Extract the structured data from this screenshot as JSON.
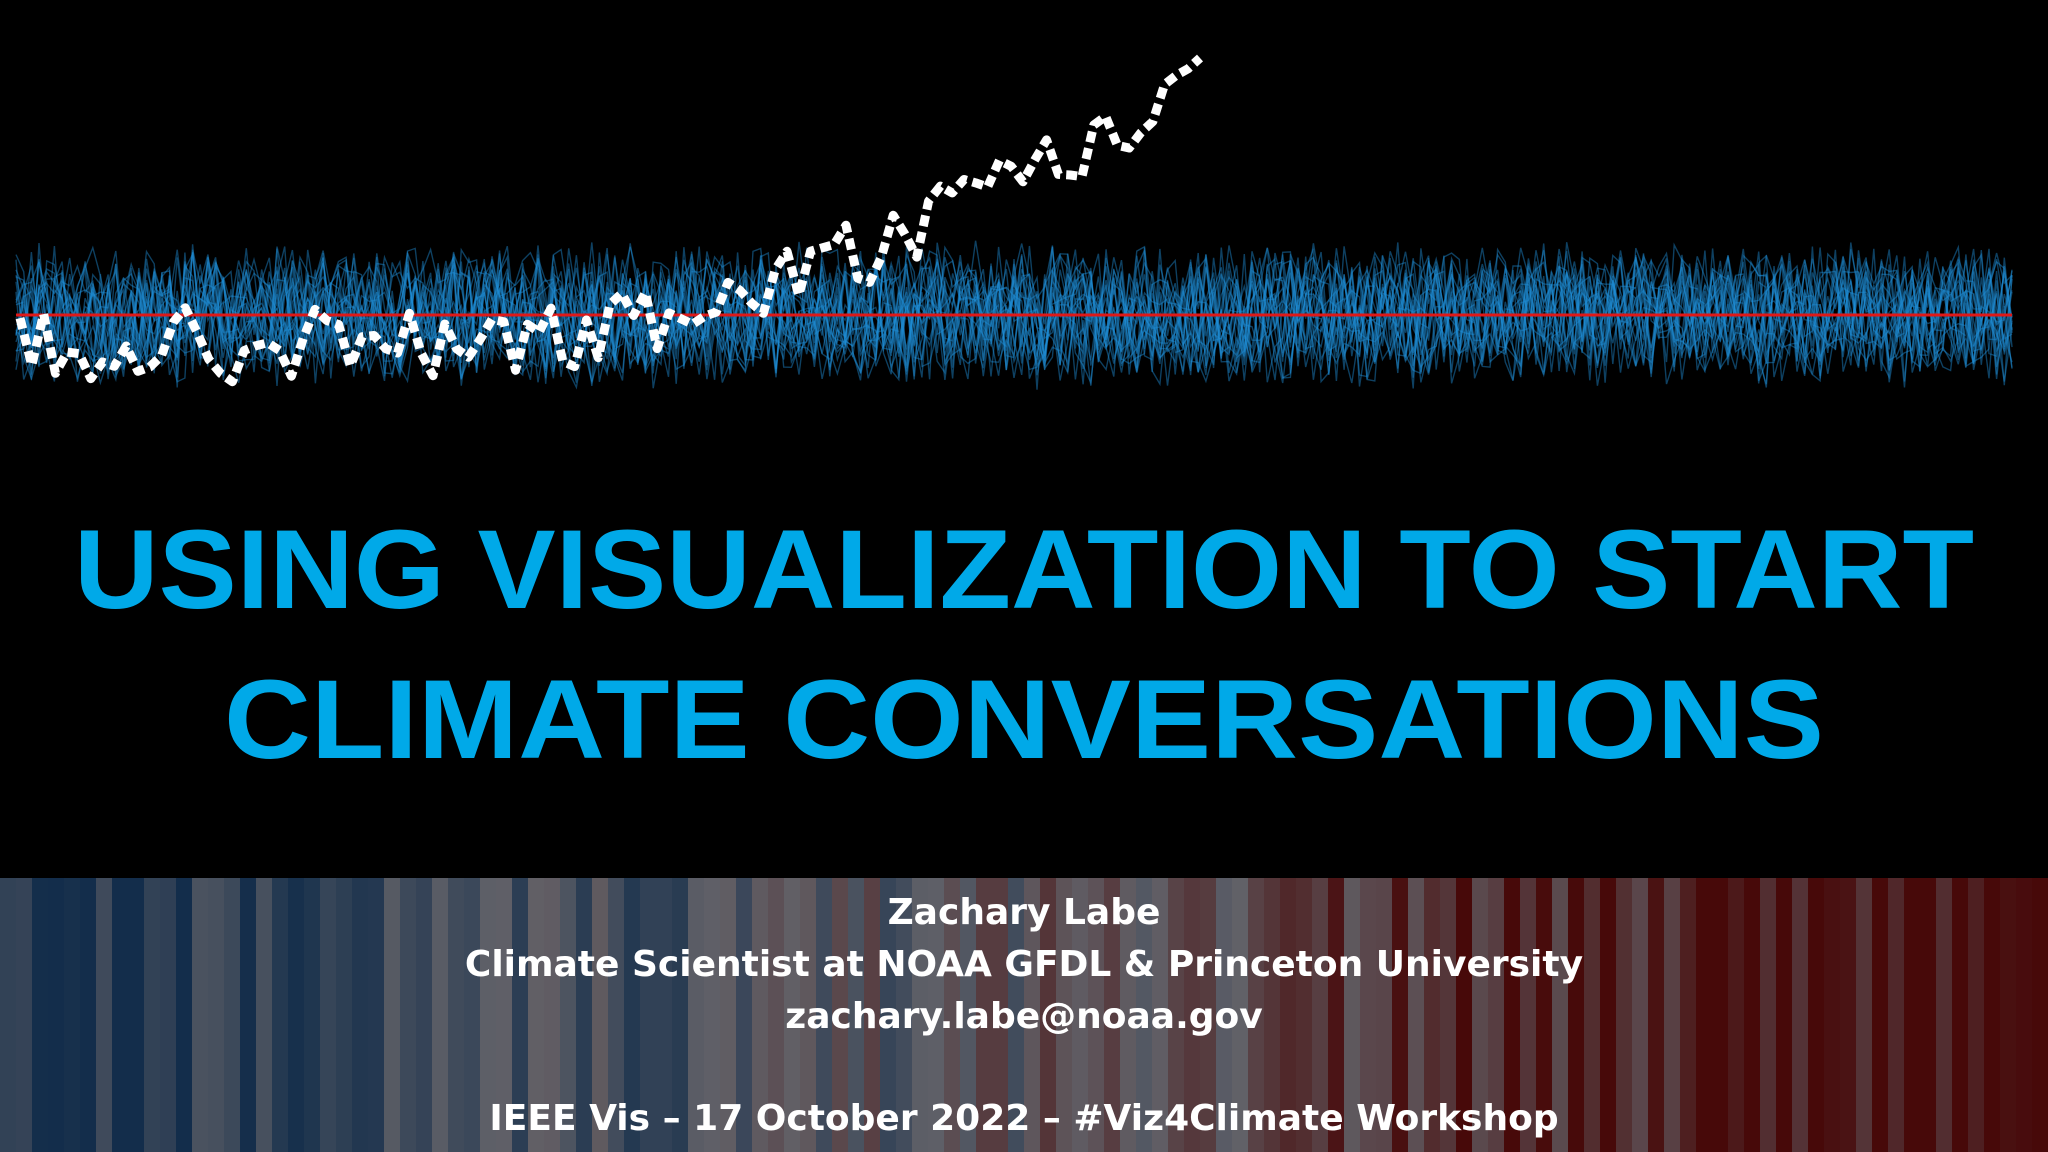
{
  "title": {
    "lines": [
      "USING VISUALIZATION TO START",
      "CLIMATE CONVERSATIONS"
    ]
  },
  "presenter": {
    "name": "Zachary Labe",
    "role": "Climate Scientist at NOAA GFDL & Princeton University",
    "email": "zachary.labe@noaa.gov"
  },
  "event": "IEEE Vis – 17 October 2022 – #Viz4Climate Workshop"
}
